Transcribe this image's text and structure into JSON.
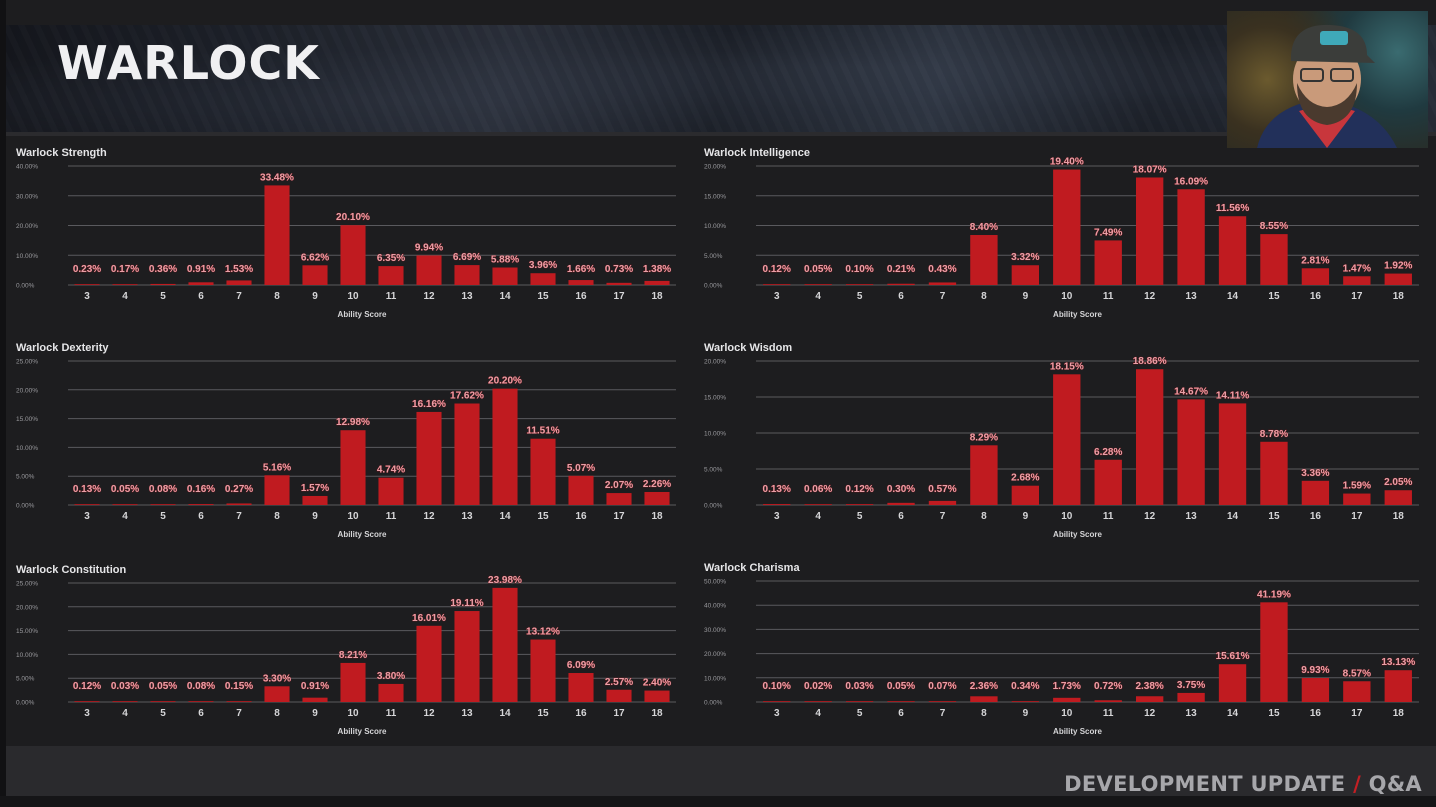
{
  "header": {
    "title": "WARLOCK"
  },
  "footer": {
    "left": "DEVELOPMENT UPDATE",
    "slash": "/",
    "right": "Q&A"
  },
  "webcam": {
    "label": "presenter-webcam"
  },
  "colors": {
    "bar": "#c01b20",
    "label": "#e8a0a8",
    "grid": "#5a5a5e",
    "axis_text": "#d6d6d8",
    "title_text": "#e6e6e8"
  },
  "chart_data": [
    {
      "type": "bar",
      "title": "Warlock Strength",
      "xlabel": "Ability Score",
      "ylabel": "",
      "ylim": [
        0,
        40
      ],
      "yticks": [
        "0.00%",
        "10.00%",
        "20.00%",
        "30.00%",
        "40.00%"
      ],
      "ytick_values": [
        0,
        10,
        20,
        30,
        40
      ],
      "grid": true,
      "categories": [
        "3",
        "4",
        "5",
        "6",
        "7",
        "8",
        "9",
        "10",
        "11",
        "12",
        "13",
        "14",
        "15",
        "16",
        "17",
        "18"
      ],
      "values": [
        0.23,
        0.17,
        0.36,
        0.91,
        1.53,
        33.48,
        6.62,
        20.1,
        6.35,
        9.94,
        6.69,
        5.88,
        3.96,
        1.66,
        0.73,
        1.38
      ],
      "labels": [
        "0.23%",
        "0.17%",
        "0.36%",
        "0.91%",
        "1.53%",
        "33.48%",
        "6.62%",
        "20.10%",
        "6.35%",
        "9.94%",
        "6.69%",
        "5.88%",
        "3.96%",
        "1.66%",
        "0.73%",
        "1.38%"
      ]
    },
    {
      "type": "bar",
      "title": "Warlock Intelligence",
      "xlabel": "Ability Score",
      "ylabel": "",
      "ylim": [
        0,
        20
      ],
      "yticks": [
        "0.00%",
        "5.00%",
        "10.00%",
        "15.00%",
        "20.00%"
      ],
      "ytick_values": [
        0,
        5,
        10,
        15,
        20
      ],
      "grid": true,
      "categories": [
        "3",
        "4",
        "5",
        "6",
        "7",
        "8",
        "9",
        "10",
        "11",
        "12",
        "13",
        "14",
        "15",
        "16",
        "17",
        "18"
      ],
      "values": [
        0.12,
        0.05,
        0.1,
        0.21,
        0.43,
        8.4,
        3.32,
        19.4,
        7.49,
        18.07,
        16.09,
        11.56,
        8.55,
        2.81,
        1.47,
        1.92
      ],
      "labels": [
        "0.12%",
        "0.05%",
        "0.10%",
        "0.21%",
        "0.43%",
        "8.40%",
        "3.32%",
        "19.40%",
        "7.49%",
        "18.07%",
        "16.09%",
        "11.56%",
        "8.55%",
        "2.81%",
        "1.47%",
        "1.92%"
      ]
    },
    {
      "type": "bar",
      "title": "Warlock Dexterity",
      "xlabel": "Ability Score",
      "ylabel": "",
      "ylim": [
        0,
        25
      ],
      "yticks": [
        "0.00%",
        "5.00%",
        "10.00%",
        "15.00%",
        "20.00%",
        "25.00%"
      ],
      "ytick_values": [
        0,
        5,
        10,
        15,
        20,
        25
      ],
      "grid": true,
      "categories": [
        "3",
        "4",
        "5",
        "6",
        "7",
        "8",
        "9",
        "10",
        "11",
        "12",
        "13",
        "14",
        "15",
        "16",
        "17",
        "18"
      ],
      "values": [
        0.13,
        0.05,
        0.08,
        0.16,
        0.27,
        5.16,
        1.57,
        12.98,
        4.74,
        16.16,
        17.62,
        20.2,
        11.51,
        5.07,
        2.07,
        2.26
      ],
      "labels": [
        "0.13%",
        "0.05%",
        "0.08%",
        "0.16%",
        "0.27%",
        "5.16%",
        "1.57%",
        "12.98%",
        "4.74%",
        "16.16%",
        "17.62%",
        "20.20%",
        "11.51%",
        "5.07%",
        "2.07%",
        "2.26%"
      ]
    },
    {
      "type": "bar",
      "title": "Warlock Wisdom",
      "xlabel": "Ability Score",
      "ylabel": "",
      "ylim": [
        0,
        20
      ],
      "yticks": [
        "0.00%",
        "5.00%",
        "10.00%",
        "15.00%",
        "20.00%"
      ],
      "ytick_values": [
        0,
        5,
        10,
        15,
        20
      ],
      "grid": true,
      "categories": [
        "3",
        "4",
        "5",
        "6",
        "7",
        "8",
        "9",
        "10",
        "11",
        "12",
        "13",
        "14",
        "15",
        "16",
        "17",
        "18"
      ],
      "values": [
        0.13,
        0.06,
        0.12,
        0.3,
        0.57,
        8.29,
        2.68,
        18.15,
        6.28,
        18.86,
        14.67,
        14.11,
        8.78,
        3.36,
        1.59,
        2.05
      ],
      "labels": [
        "0.13%",
        "0.06%",
        "0.12%",
        "0.30%",
        "0.57%",
        "8.29%",
        "2.68%",
        "18.15%",
        "6.28%",
        "18.86%",
        "14.67%",
        "14.11%",
        "8.78%",
        "3.36%",
        "1.59%",
        "2.05%"
      ]
    },
    {
      "type": "bar",
      "title": "Warlock Constitution",
      "xlabel": "Ability Score",
      "ylabel": "",
      "ylim": [
        0,
        25
      ],
      "yticks": [
        "0.00%",
        "5.00%",
        "10.00%",
        "15.00%",
        "20.00%",
        "25.00%"
      ],
      "ytick_values": [
        0,
        5,
        10,
        15,
        20,
        25
      ],
      "grid": true,
      "categories": [
        "3",
        "4",
        "5",
        "6",
        "7",
        "8",
        "9",
        "10",
        "11",
        "12",
        "13",
        "14",
        "15",
        "16",
        "17",
        "18"
      ],
      "values": [
        0.12,
        0.03,
        0.05,
        0.08,
        0.15,
        3.3,
        0.91,
        8.21,
        3.8,
        16.01,
        19.11,
        23.98,
        13.12,
        6.09,
        2.57,
        2.4
      ],
      "labels": [
        "0.12%",
        "0.03%",
        "0.05%",
        "0.08%",
        "0.15%",
        "3.30%",
        "0.91%",
        "8.21%",
        "3.80%",
        "16.01%",
        "19.11%",
        "23.98%",
        "13.12%",
        "6.09%",
        "2.57%",
        "2.40%"
      ]
    },
    {
      "type": "bar",
      "title": "Warlock Charisma",
      "xlabel": "Ability Score",
      "ylabel": "",
      "ylim": [
        0,
        50
      ],
      "yticks": [
        "0.00%",
        "10.00%",
        "20.00%",
        "30.00%",
        "40.00%",
        "50.00%"
      ],
      "ytick_values": [
        0,
        10,
        20,
        30,
        40,
        50
      ],
      "grid": true,
      "categories": [
        "3",
        "4",
        "5",
        "6",
        "7",
        "8",
        "9",
        "10",
        "11",
        "12",
        "13",
        "14",
        "15",
        "16",
        "17",
        "18"
      ],
      "values": [
        0.1,
        0.02,
        0.03,
        0.05,
        0.07,
        2.36,
        0.34,
        1.73,
        0.72,
        2.38,
        3.75,
        15.61,
        41.19,
        9.93,
        8.57,
        13.13
      ],
      "labels": [
        "0.10%",
        "0.02%",
        "0.03%",
        "0.05%",
        "0.07%",
        "2.36%",
        "0.34%",
        "1.73%",
        "0.72%",
        "2.38%",
        "3.75%",
        "15.61%",
        "41.19%",
        "9.93%",
        "8.57%",
        "13.13%"
      ]
    }
  ]
}
